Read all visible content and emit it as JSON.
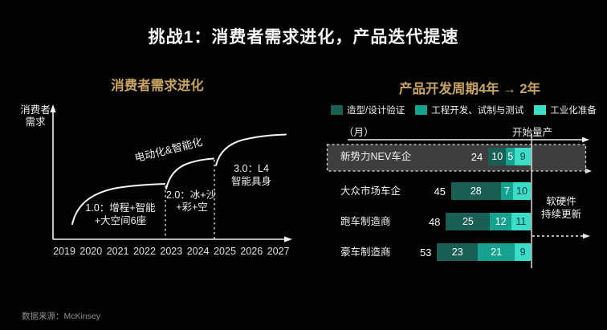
{
  "slide": {
    "title": "挑战1：消费者需求进化，产品迭代提速",
    "source": "数据来源：McKinsey"
  },
  "left_chart": {
    "title": "消费者需求进化",
    "y_axis_line1": "消费者",
    "y_axis_line2": "需求",
    "diagonal_label": "电动化&智能化",
    "years": [
      "2019",
      "2020",
      "2021",
      "2022",
      "2023",
      "2024",
      "2025",
      "2026",
      "2027"
    ],
    "stages": [
      {
        "line1": "1.0：增程+智能",
        "line2": "+大空间6座"
      },
      {
        "line1": "2.0：冰+沙",
        "line2": "+彩+空"
      },
      {
        "line1": "3.0：L4",
        "line2": "智能具身"
      }
    ]
  },
  "right_chart": {
    "title": "产品开发周期4年 → 2年",
    "unit_label": "（月）",
    "sop_label": "开始量产",
    "annotation_line1": "软硬件",
    "annotation_line2": "持续更新"
  },
  "colors": {
    "accent_gold": "#C8A462",
    "stage1_dark_teal": "#1A5F55",
    "stage2_teal": "#17A191",
    "stage3_cyan": "#3BDCC8",
    "highlight_box_fill": "#3E3E3E",
    "background": "#020202"
  },
  "chart_data": [
    {
      "type": "line",
      "title": "消费者需求进化",
      "ylabel": "消费者需求",
      "x_ticks": [
        "2019",
        "2020",
        "2021",
        "2022",
        "2023",
        "2024",
        "2025",
        "2026",
        "2027"
      ],
      "description": "三段连续上升的S型曲线（概念图，无数值刻度），阶段分界虚线位于2023与2025",
      "stage_boundaries_x": [
        "2023",
        "2025"
      ],
      "annotations": [
        "电动化&智能化",
        "1.0：增程+智能+大空间6座",
        "2.0：冰+沙+彩+空",
        "3.0：L4 智能具身"
      ]
    },
    {
      "type": "bar",
      "title": "产品开发周期4年 → 2年",
      "orientation": "horizontal_stacked_right_aligned",
      "unit": "月",
      "categories": [
        "新势力NEV车企",
        "大众市场车企",
        "跑车制造商",
        "豪车制造商"
      ],
      "totals": [
        24,
        45,
        48,
        53
      ],
      "series": [
        {
          "name": "造型/设计验证",
          "values": [
            10,
            28,
            25,
            23
          ],
          "color": "#1A5F55"
        },
        {
          "name": "工程开发、试制与测试",
          "values": [
            5,
            7,
            12,
            21
          ],
          "color": "#17A191"
        },
        {
          "name": "工业化准备",
          "values": [
            9,
            10,
            11,
            9
          ],
          "color": "#3BDCC8"
        }
      ],
      "legend_position": "top",
      "end_marker_label": "开始量产",
      "highlighted_category": "新势力NEV车企"
    }
  ]
}
